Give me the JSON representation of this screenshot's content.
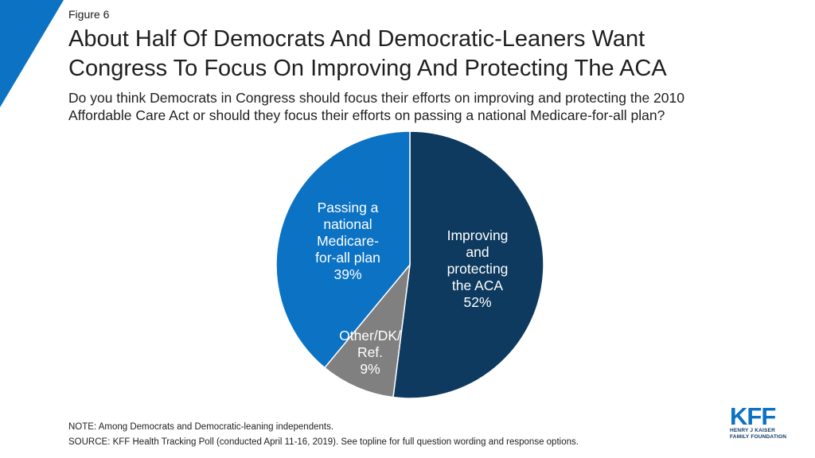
{
  "figure_label": "Figure 6",
  "title_line1": "About Half Of Democrats And Democratic-Leaners Want",
  "title_line2": "Congress To Focus On Improving And Protecting The ACA",
  "subtitle_line1": "Do you think Democrats in Congress should focus their efforts on improving and protecting the 2010",
  "subtitle_line2": "Affordable Care Act or should they focus their efforts on passing a national Medicare-for-all plan?",
  "chart_data": {
    "type": "pie",
    "slices": [
      {
        "label": [
          "Improving",
          "and",
          "protecting",
          "the ACA",
          "52%"
        ],
        "name": "Improving and protecting the ACA",
        "value": 52,
        "color": "#0d3a5e"
      },
      {
        "label": [
          "Other/DK/",
          "Ref.",
          "9%"
        ],
        "name": "Other/DK/Ref.",
        "value": 9,
        "color": "#808080"
      },
      {
        "label": [
          "Passing a",
          "national",
          "Medicare-",
          "for-all plan",
          "39%"
        ],
        "name": "Passing a national Medicare-for-all plan",
        "value": 39,
        "color": "#0b72c4"
      }
    ]
  },
  "note": "NOTE: Among Democrats and Democratic-leaning independents.",
  "source": "SOURCE: KFF Health Tracking Poll (conducted April 11-16, 2019). See topline for full question wording and response options.",
  "logo": {
    "mark": "KFF",
    "line1": "HENRY J KAISER",
    "line2": "FAMILY FOUNDATION"
  },
  "colors": {
    "accent": "#0b72c4",
    "dark": "#0d3a5e",
    "gray": "#808080"
  }
}
